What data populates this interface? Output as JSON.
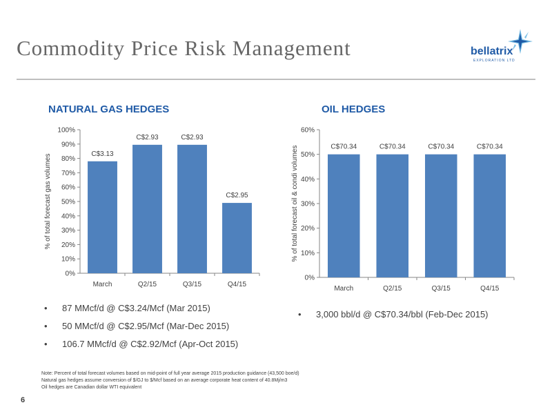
{
  "slide": {
    "title": "Commodity Price Risk Management",
    "page_number": "6"
  },
  "logo": {
    "name": "bellatrix",
    "tagline": "EXPLORATION LTD",
    "color": "#1f5aa6"
  },
  "gas": {
    "heading": "NATURAL GAS HEDGES",
    "bullets": [
      "87 MMcf/d @ C$3.24/Mcf (Mar 2015)",
      "50 MMcf/d @ C$2.95/Mcf (Mar-Dec 2015)",
      "106.7 MMcf/d @ C$2.92/Mcf (Apr-Oct 2015)"
    ]
  },
  "oil": {
    "heading": "OIL HEDGES",
    "bullets": [
      "3,000 bbl/d @ C$70.34/bbl (Feb-Dec 2015)"
    ]
  },
  "notes": [
    "Note: Percent of total forecast volumes based on mid-point of full year average 2015 production guidance (43,500 boe/d)",
    "Natural gas hedges assume conversion of $/GJ to $/Mcf based on an average corporate heat content of 40.8Mj/m3",
    "Oil hedges are Canadian dollar WTI equivalent"
  ],
  "chart_data": [
    {
      "type": "bar",
      "categories": [
        "March",
        "Q2/15",
        "Q3/15",
        "Q4/15"
      ],
      "values": [
        78,
        89.5,
        89.5,
        49
      ],
      "data_labels": [
        "C$3.13",
        "C$2.93",
        "C$2.93",
        "C$2.95"
      ],
      "ylabel": "% of total forecast gas volumes",
      "ylim": [
        0,
        100
      ],
      "yticks": [
        0,
        10,
        20,
        30,
        40,
        50,
        60,
        70,
        80,
        90,
        100
      ],
      "bar_color": "#4f81bd",
      "grid": false
    },
    {
      "type": "bar",
      "categories": [
        "March",
        "Q2/15",
        "Q3/15",
        "Q4/15"
      ],
      "values": [
        50,
        50,
        50,
        50
      ],
      "data_labels": [
        "C$70.34",
        "C$70.34",
        "C$70.34",
        "C$70.34"
      ],
      "ylabel": "% of total forecast oil & condi volumes",
      "ylim": [
        0,
        60
      ],
      "yticks": [
        0,
        10,
        20,
        30,
        40,
        50,
        60
      ],
      "bar_color": "#4f81bd",
      "grid": false
    }
  ]
}
